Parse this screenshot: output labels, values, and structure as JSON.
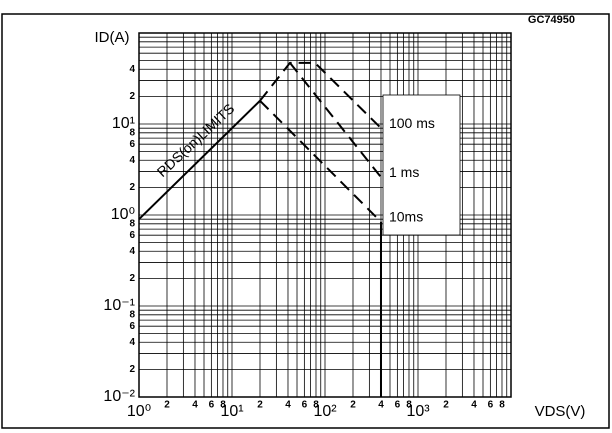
{
  "chart_data": {
    "type": "line",
    "title": "GC74950",
    "y_label": "ID(A)",
    "x_label": "VDS(V)",
    "annotation": "RDS(on)LIMITS",
    "log_x": true,
    "log_y": true,
    "grid": true,
    "xlim": [
      1,
      10000
    ],
    "ylim": [
      0.01,
      100
    ],
    "xticks": [
      {
        "value": 1,
        "label": "10⁰"
      },
      2,
      4,
      6,
      8,
      {
        "value": 10,
        "label": "10¹"
      },
      {
        "value": 20,
        "label": "2"
      },
      {
        "value": 40,
        "label": "4"
      },
      {
        "value": 60,
        "label": "6"
      },
      {
        "value": 80,
        "label": "8"
      },
      {
        "value": 100,
        "label": "10²"
      },
      {
        "value": 200,
        "label": "2"
      },
      {
        "value": 400,
        "label": "4"
      },
      {
        "value": 600,
        "label": "6"
      },
      {
        "value": 800,
        "label": "8"
      },
      {
        "value": 1000,
        "label": "10³"
      },
      {
        "value": 2000,
        "label": "2"
      },
      {
        "value": 4000,
        "label": "4"
      },
      {
        "value": 6000,
        "label": "6"
      },
      {
        "value": 8000,
        "label": "8"
      }
    ],
    "yticks": [
      {
        "value": 0.01,
        "label": "10⁻²"
      },
      {
        "value": 0.02,
        "label": "2"
      },
      {
        "value": 0.04,
        "label": "4"
      },
      {
        "value": 0.06,
        "label": "6"
      },
      {
        "value": 0.08,
        "label": "8"
      },
      {
        "value": 0.1,
        "label": "10⁻¹"
      },
      {
        "value": 0.2,
        "label": "2"
      },
      {
        "value": 0.4,
        "label": "4"
      },
      {
        "value": 0.6,
        "label": "6"
      },
      {
        "value": 0.8,
        "label": "8"
      },
      {
        "value": 1,
        "label": "10⁰"
      },
      2,
      4,
      6,
      8,
      {
        "value": 10,
        "label": "10¹"
      },
      {
        "value": 20,
        "label": "2"
      },
      {
        "value": 40,
        "label": "4"
      }
    ],
    "xgrid": [
      1,
      2,
      3,
      4,
      5,
      6,
      7,
      8,
      9,
      10,
      20,
      30,
      40,
      50,
      60,
      70,
      80,
      90,
      100,
      200,
      300,
      400,
      500,
      600,
      700,
      800,
      900,
      1000,
      2000,
      3000,
      4000,
      5000,
      6000,
      7000,
      8000,
      9000,
      10000
    ],
    "ygrid": [
      0.01,
      0.02,
      0.03,
      0.04,
      0.05,
      0.06,
      0.07,
      0.08,
      0.09,
      0.1,
      0.2,
      0.3,
      0.4,
      0.5,
      0.6,
      0.7,
      0.8,
      0.9,
      1,
      2,
      3,
      4,
      5,
      6,
      7,
      8,
      9,
      10,
      20,
      30,
      40,
      50,
      60,
      70,
      80,
      90,
      100
    ],
    "series": [
      {
        "x": [
          1,
          20
        ],
        "values": [
          0.9,
          18
        ],
        "color": "#000000",
        "style": "solid"
      },
      {
        "name": "100 ms",
        "x": [
          20,
          42,
          78,
          400
        ],
        "values": [
          18,
          47,
          47,
          9
        ],
        "color": "#000000",
        "style": "dashed"
      },
      {
        "name": "1 ms",
        "x": [
          42,
          400
        ],
        "values": [
          47,
          2.6
        ],
        "color": "#000000",
        "style": "dashed"
      },
      {
        "name": "10ms",
        "x": [
          20,
          400
        ],
        "values": [
          18,
          0.84
        ],
        "color": "#000000",
        "style": "dashed"
      },
      {
        "x": [
          400,
          400
        ],
        "values": [
          0.84,
          0.01
        ],
        "color": "#000000",
        "style": "solid"
      }
    ]
  }
}
